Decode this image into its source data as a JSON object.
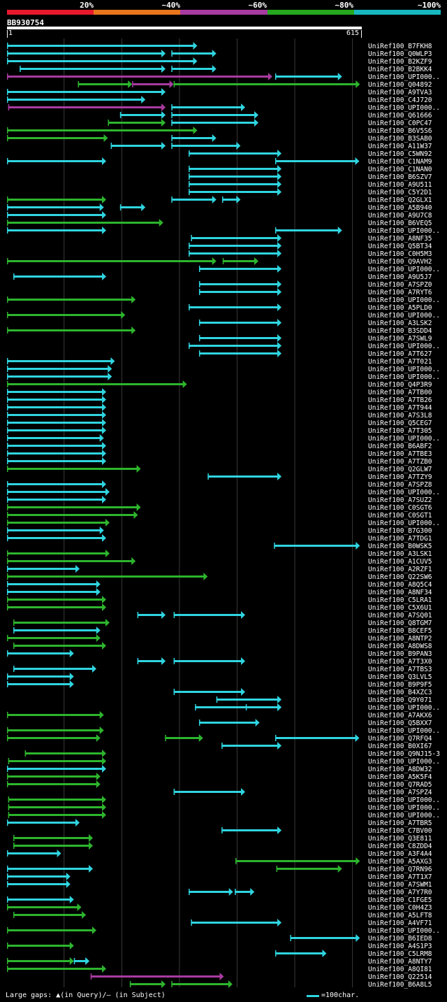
{
  "legend": {
    "labels": [
      "20%",
      "~40%",
      "~60%",
      "~80%",
      "~100%"
    ],
    "colors": [
      "#e8192c",
      "#e8761c",
      "#a83ba0",
      "#25a81e",
      "#18b8c0"
    ]
  },
  "query": {
    "name": "BB930754",
    "start": "1",
    "end": "615",
    "length": 615
  },
  "hit_colors": {
    "cyan": "#2fd5e0",
    "green": "#2db52d",
    "purple": "#a83ba0",
    "grid": "#3a3a3a"
  },
  "hits": [
    {
      "name": "UniRef100_B7FKH8",
      "segs": [
        [
          1,
          331,
          "c"
        ]
      ]
    },
    {
      "name": "UniRef100_Q0WLP3",
      "segs": [
        [
          1,
          276,
          "c"
        ],
        [
          286,
          364,
          "c"
        ]
      ]
    },
    {
      "name": "UniRef100_B2KZF9",
      "segs": [
        [
          1,
          331,
          "c"
        ]
      ]
    },
    {
      "name": "UniRef100_B2BKK4",
      "segs": [
        [
          23,
          276,
          "c"
        ],
        [
          286,
          364,
          "c"
        ]
      ]
    },
    {
      "name": "UniRef100_UPI000..",
      "segs": [
        [
          1,
          461,
          "p"
        ],
        [
          466,
          582,
          "c"
        ]
      ]
    },
    {
      "name": "UniRef100_Q04892",
      "segs": [
        [
          124,
          218,
          "g"
        ],
        [
          218,
          290,
          "p"
        ],
        [
          290,
          613,
          "g"
        ]
      ]
    },
    {
      "name": "UniRef100_A9TVA3",
      "segs": [
        [
          1,
          276,
          "c"
        ]
      ]
    },
    {
      "name": "UniRef100_C4J720",
      "segs": [
        [
          1,
          241,
          "c"
        ]
      ]
    },
    {
      "name": "UniRef100_UPI000..",
      "segs": [
        [
          3,
          276,
          "p"
        ],
        [
          286,
          414,
          "c"
        ]
      ]
    },
    {
      "name": "UniRef100_Q61666",
      "segs": [
        [
          197,
          276,
          "c"
        ],
        [
          286,
          437,
          "c"
        ]
      ]
    },
    {
      "name": "UniRef100_C0PC47",
      "segs": [
        [
          176,
          276,
          "g"
        ],
        [
          286,
          437,
          "c"
        ]
      ]
    },
    {
      "name": "UniRef100_B6V5S6",
      "segs": [
        [
          1,
          331,
          "g"
        ]
      ]
    },
    {
      "name": "UniRef100_B3SAB0",
      "segs": [
        [
          1,
          176,
          "g"
        ],
        [
          286,
          364,
          "c"
        ]
      ]
    },
    {
      "name": "UniRef100_A11W37",
      "segs": [
        [
          181,
          276,
          "c"
        ],
        [
          286,
          406,
          "c"
        ]
      ]
    },
    {
      "name": "UniRef100_C5WN92",
      "segs": [
        [
          316,
          477,
          "c"
        ]
      ]
    },
    {
      "name": "UniRef100_C1NAM9",
      "segs": [
        [
          1,
          173,
          "c"
        ],
        [
          466,
          612,
          "c"
        ]
      ]
    },
    {
      "name": "UniRef100_C1NAN0",
      "segs": [
        [
          316,
          477,
          "c"
        ]
      ]
    },
    {
      "name": "UniRef100_B6SZV7",
      "segs": [
        [
          316,
          477,
          "c"
        ]
      ]
    },
    {
      "name": "UniRef100_A9U511",
      "segs": [
        [
          316,
          477,
          "c"
        ]
      ]
    },
    {
      "name": "UniRef100_C5Y2D1",
      "segs": [
        [
          316,
          477,
          "c"
        ]
      ]
    },
    {
      "name": "UniRef100_Q2GLX1",
      "segs": [
        [
          1,
          173,
          "g"
        ],
        [
          286,
          364,
          "c"
        ],
        [
          374,
          406,
          "c"
        ]
      ]
    },
    {
      "name": "UniRef100_A5B940",
      "segs": [
        [
          1,
          169,
          "c"
        ],
        [
          197,
          241,
          "c"
        ]
      ]
    },
    {
      "name": "UniRef100_A9U7C8",
      "segs": [
        [
          1,
          173,
          "c"
        ]
      ]
    },
    {
      "name": "UniRef100_B6VEQ5",
      "segs": [
        [
          1,
          272,
          "g"
        ]
      ]
    },
    {
      "name": "UniRef100_UPI000..",
      "segs": [
        [
          1,
          173,
          "c"
        ],
        [
          466,
          582,
          "c"
        ]
      ]
    },
    {
      "name": "UniRef100_A8NF35",
      "segs": [
        [
          320,
          477,
          "c"
        ]
      ]
    },
    {
      "name": "UniRef100_Q5BT34",
      "segs": [
        [
          316,
          477,
          "c"
        ]
      ]
    },
    {
      "name": "UniRef100_C0H5M3",
      "segs": [
        [
          316,
          477,
          "c"
        ]
      ]
    },
    {
      "name": "UniRef100_Q9AVH2",
      "segs": [
        [
          1,
          364,
          "g"
        ],
        [
          375,
          437,
          "g"
        ]
      ]
    },
    {
      "name": "UniRef100_UPI000..",
      "segs": [
        [
          334,
          477,
          "c"
        ]
      ]
    },
    {
      "name": "UniRef100_A9U5J7",
      "segs": [
        [
          12,
          173,
          "c"
        ]
      ]
    },
    {
      "name": "UniRef100_A7SPZ0",
      "segs": [
        [
          334,
          477,
          "c"
        ]
      ]
    },
    {
      "name": "UniRef100_A7RYT6",
      "segs": [
        [
          334,
          477,
          "c"
        ]
      ]
    },
    {
      "name": "UniRef100_UPI000..",
      "segs": [
        [
          1,
          224,
          "g"
        ]
      ]
    },
    {
      "name": "UniRef100_A5PLD0",
      "segs": [
        [
          316,
          477,
          "c"
        ]
      ]
    },
    {
      "name": "UniRef100_UPI000..",
      "segs": [
        [
          1,
          206,
          "g"
        ]
      ]
    },
    {
      "name": "UniRef100_A3LSK2",
      "segs": [
        [
          334,
          477,
          "c"
        ]
      ]
    },
    {
      "name": "UniRef100_B3SDD4",
      "segs": [
        [
          1,
          224,
          "g"
        ]
      ]
    },
    {
      "name": "UniRef100_A7SWL9",
      "segs": [
        [
          334,
          477,
          "c"
        ]
      ]
    },
    {
      "name": "UniRef100_UPI000..",
      "segs": [
        [
          316,
          477,
          "c"
        ]
      ]
    },
    {
      "name": "UniRef100_A7T627",
      "segs": [
        [
          334,
          477,
          "c"
        ]
      ]
    },
    {
      "name": "UniRef100_A7T021",
      "segs": [
        [
          1,
          188,
          "c"
        ]
      ]
    },
    {
      "name": "UniRef100_UPI000..",
      "segs": [
        [
          1,
          183,
          "c"
        ]
      ]
    },
    {
      "name": "UniRef100_UPI000..",
      "segs": [
        [
          1,
          183,
          "c"
        ]
      ]
    },
    {
      "name": "UniRef100_Q4P3R9",
      "segs": [
        [
          1,
          313,
          "g"
        ]
      ]
    },
    {
      "name": "UniRef100_A7TB00",
      "segs": [
        [
          1,
          173,
          "c"
        ]
      ]
    },
    {
      "name": "UniRef100_A7TB26",
      "segs": [
        [
          1,
          173,
          "c"
        ]
      ]
    },
    {
      "name": "UniRef100_A7T944",
      "segs": [
        [
          1,
          173,
          "c"
        ]
      ]
    },
    {
      "name": "UniRef100_A7S3L8",
      "segs": [
        [
          1,
          173,
          "c"
        ]
      ]
    },
    {
      "name": "UniRef100_Q5CEG7",
      "segs": [
        [
          1,
          173,
          "c"
        ]
      ]
    },
    {
      "name": "UniRef100_A7T305",
      "segs": [
        [
          1,
          173,
          "c"
        ]
      ]
    },
    {
      "name": "UniRef100_UPI000..",
      "segs": [
        [
          1,
          169,
          "c"
        ]
      ]
    },
    {
      "name": "UniRef100_B6ABF2",
      "segs": [
        [
          1,
          173,
          "c"
        ]
      ]
    },
    {
      "name": "UniRef100_A7TBE3",
      "segs": [
        [
          1,
          173,
          "c"
        ]
      ]
    },
    {
      "name": "UniRef100_A7TZB0",
      "segs": [
        [
          1,
          173,
          "c"
        ]
      ]
    },
    {
      "name": "UniRef100_Q2GLW7",
      "segs": [
        [
          1,
          233,
          "g"
        ]
      ]
    },
    {
      "name": "UniRef100_A7TZY9",
      "segs": [
        [
          349,
          477,
          "c"
        ]
      ]
    },
    {
      "name": "UniRef100_A7SPZ8",
      "segs": [
        [
          1,
          173,
          "c"
        ]
      ]
    },
    {
      "name": "UniRef100_UPI000..",
      "segs": [
        [
          1,
          179,
          "c"
        ]
      ]
    },
    {
      "name": "UniRef100_A7SUZ2",
      "segs": [
        [
          1,
          173,
          "c"
        ]
      ]
    },
    {
      "name": "UniRef100_C0SGT6",
      "segs": [
        [
          1,
          233,
          "g"
        ]
      ]
    },
    {
      "name": "UniRef100_C0SGT1",
      "segs": [
        [
          1,
          228,
          "g"
        ]
      ]
    },
    {
      "name": "UniRef100_UPI000..",
      "segs": [
        [
          1,
          179,
          "g"
        ]
      ]
    },
    {
      "name": "UniRef100_B7G300",
      "segs": [
        [
          1,
          169,
          "c"
        ]
      ]
    },
    {
      "name": "UniRef100_A7TDG1",
      "segs": [
        [
          1,
          173,
          "c"
        ]
      ]
    },
    {
      "name": "UniRef100_B0WSK5",
      "segs": [
        [
          464,
          613,
          "c"
        ]
      ]
    },
    {
      "name": "UniRef100_A3LSK1",
      "segs": [
        [
          1,
          179,
          "g"
        ]
      ]
    },
    {
      "name": "UniRef100_A1CUV5",
      "segs": [
        [
          1,
          224,
          "g"
        ]
      ]
    },
    {
      "name": "UniRef100_A2RZF1",
      "segs": [
        [
          1,
          127,
          "c"
        ]
      ]
    },
    {
      "name": "UniRef100_Q22SW6",
      "segs": [
        [
          1,
          349,
          "g"
        ]
      ]
    },
    {
      "name": "UniRef100_A8Q5C4",
      "segs": [
        [
          1,
          163,
          "c"
        ]
      ]
    },
    {
      "name": "UniRef100_A8NF34",
      "segs": [
        [
          1,
          163,
          "c"
        ]
      ]
    },
    {
      "name": "UniRef100_C5LRA1",
      "segs": [
        [
          1,
          173,
          "g"
        ]
      ]
    },
    {
      "name": "UniRef100_C5X6U1",
      "segs": [
        [
          1,
          173,
          "g"
        ]
      ]
    },
    {
      "name": "UniRef100_A7SQ01",
      "segs": [
        [
          227,
          276,
          "c"
        ],
        [
          290,
          414,
          "c"
        ]
      ]
    },
    {
      "name": "UniRef100_Q8TGM7",
      "segs": [
        [
          12,
          179,
          "g"
        ]
      ]
    },
    {
      "name": "UniRef100_B8CEF5",
      "segs": [
        [
          12,
          163,
          "c"
        ]
      ]
    },
    {
      "name": "UniRef100_A8NTP2",
      "segs": [
        [
          1,
          163,
          "g"
        ]
      ]
    },
    {
      "name": "UniRef100_A8DWS8",
      "segs": [
        [
          12,
          173,
          "g"
        ]
      ]
    },
    {
      "name": "UniRef100_B9PAN3",
      "segs": [
        [
          1,
          117,
          "c"
        ]
      ]
    },
    {
      "name": "UniRef100_A7T3X0",
      "segs": [
        [
          227,
          276,
          "c"
        ],
        [
          290,
          414,
          "c"
        ]
      ]
    },
    {
      "name": "UniRef100_A7TBS3",
      "segs": [
        [
          12,
          156,
          "c"
        ]
      ]
    },
    {
      "name": "UniRef100_Q3LVL5",
      "segs": [
        [
          1,
          117,
          "c"
        ]
      ]
    },
    {
      "name": "UniRef100_B9P9F5",
      "segs": [
        [
          1,
          117,
          "c"
        ]
      ]
    },
    {
      "name": "UniRef100_B4XZC3",
      "segs": [
        [
          290,
          414,
          "c"
        ]
      ]
    },
    {
      "name": "UniRef100_Q9Y071",
      "segs": [
        [
          364,
          477,
          "c"
        ]
      ]
    },
    {
      "name": "UniRef100_UPI000..",
      "segs": [
        [
          327,
          477,
          "c"
        ],
        [
          415,
          477,
          "c"
        ]
      ]
    },
    {
      "name": "UniRef100_A7AKX6",
      "segs": [
        [
          1,
          169,
          "g"
        ]
      ]
    },
    {
      "name": "UniRef100_Q5BXX7",
      "segs": [
        [
          334,
          439,
          "c"
        ]
      ]
    },
    {
      "name": "UniRef100_UPI000..",
      "segs": [
        [
          1,
          169,
          "g"
        ]
      ]
    },
    {
      "name": "UniRef100_Q7RFQ4",
      "segs": [
        [
          1,
          163,
          "g"
        ],
        [
          275,
          341,
          "g"
        ],
        [
          466,
          612,
          "c"
        ]
      ]
    },
    {
      "name": "UniRef100_B0XI67",
      "segs": [
        [
          373,
          477,
          "c"
        ]
      ]
    },
    {
      "name": "UniRef100_Q9NJ15-3",
      "segs": [
        [
          32,
          173,
          "g"
        ]
      ]
    },
    {
      "name": "UniRef100_UPI000..",
      "segs": [
        [
          3,
          173,
          "g"
        ]
      ]
    },
    {
      "name": "UniRef100_A8DW32",
      "segs": [
        [
          1,
          173,
          "c"
        ]
      ]
    },
    {
      "name": "UniRef100_A5K5F4",
      "segs": [
        [
          1,
          163,
          "g"
        ]
      ]
    },
    {
      "name": "UniRef100_Q7RAD5",
      "segs": [
        [
          1,
          163,
          "g"
        ]
      ]
    },
    {
      "name": "UniRef100_A7SPZ4",
      "segs": [
        [
          290,
          414,
          "c"
        ]
      ]
    },
    {
      "name": "UniRef100_UPI000..",
      "segs": [
        [
          3,
          173,
          "g"
        ]
      ]
    },
    {
      "name": "UniRef100_UPI000..",
      "segs": [
        [
          3,
          173,
          "g"
        ]
      ]
    },
    {
      "name": "UniRef100_UPI000..",
      "segs": [
        [
          3,
          173,
          "g"
        ]
      ]
    },
    {
      "name": "UniRef100_A7TBR5",
      "segs": [
        [
          1,
          127,
          "c"
        ]
      ]
    },
    {
      "name": "UniRef100_C7BV00",
      "segs": [
        [
          373,
          477,
          "c"
        ]
      ]
    },
    {
      "name": "UniRef100_Q3E811",
      "segs": [
        [
          12,
          150,
          "g"
        ]
      ]
    },
    {
      "name": "UniRef100_C8ZDD4",
      "segs": [
        [
          12,
          150,
          "g"
        ]
      ]
    },
    {
      "name": "UniRef100_A3F4A4",
      "segs": [
        [
          1,
          95,
          "c"
        ]
      ]
    },
    {
      "name": "UniRef100_A5AXG3",
      "segs": [
        [
          397,
          613,
          "g"
        ]
      ]
    },
    {
      "name": "UniRef100_Q7RN96",
      "segs": [
        [
          1,
          150,
          "c"
        ],
        [
          468,
          582,
          "g"
        ]
      ]
    },
    {
      "name": "UniRef100_A7T1X7",
      "segs": [
        [
          1,
          111,
          "c"
        ]
      ]
    },
    {
      "name": "UniRef100_A7SWM1",
      "segs": [
        [
          1,
          111,
          "c"
        ]
      ]
    },
    {
      "name": "UniRef100_A7Y7R0",
      "segs": [
        [
          316,
          393,
          "c"
        ],
        [
          396,
          430,
          "c"
        ]
      ]
    },
    {
      "name": "UniRef100_C1FGE5",
      "segs": [
        [
          1,
          117,
          "c"
        ]
      ]
    },
    {
      "name": "UniRef100_C0H4Z3",
      "segs": [
        [
          1,
          130,
          "g"
        ]
      ]
    },
    {
      "name": "UniRef100_A5LFT8",
      "segs": [
        [
          12,
          138,
          "g"
        ]
      ]
    },
    {
      "name": "UniRef100_A4VF71",
      "segs": [
        [
          320,
          477,
          "c"
        ]
      ]
    },
    {
      "name": "UniRef100_UPI000..",
      "segs": [
        [
          1,
          156,
          "g"
        ]
      ]
    },
    {
      "name": "UniRef100_B6IED8",
      "segs": [
        [
          492,
          613,
          "c"
        ]
      ]
    },
    {
      "name": "UniRef100_A4S1P3",
      "segs": [
        [
          1,
          117,
          "g"
        ]
      ]
    },
    {
      "name": "UniRef100_C5LRM8",
      "segs": [
        [
          466,
          555,
          "c"
        ]
      ]
    },
    {
      "name": "UniRef100_A8NTY7",
      "segs": [
        [
          1,
          117,
          "g"
        ],
        [
          117,
          144,
          "c"
        ]
      ]
    },
    {
      "name": "UniRef100_A8QI81",
      "segs": [
        [
          1,
          173,
          "g"
        ]
      ]
    },
    {
      "name": "UniRef100_Q22514",
      "segs": [
        [
          146,
          377,
          "p"
        ]
      ]
    },
    {
      "name": "UniRef100_B6A8L5",
      "segs": [
        [
          214,
          276,
          "g"
        ],
        [
          286,
          392,
          "g"
        ]
      ]
    }
  ],
  "footer": {
    "gaps_text": "Large gaps: ▲(in Query)/— (in Subject)",
    "scale_text": "=100char."
  }
}
